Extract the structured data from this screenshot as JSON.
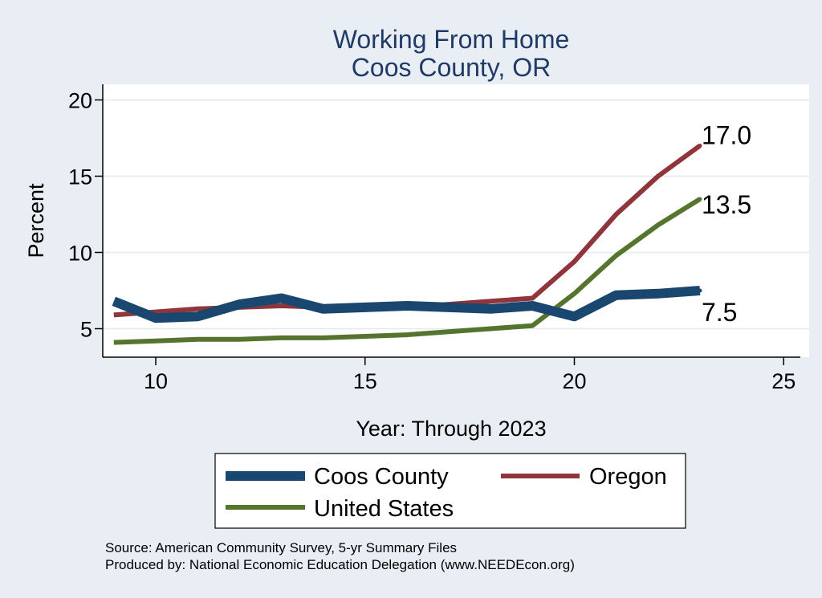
{
  "chart_data": {
    "type": "line",
    "title": "Working From Home",
    "subtitle": "Coos County, OR",
    "xlabel": "Year: Through 2023",
    "ylabel": "Percent",
    "xlim": [
      8.8,
      25.2
    ],
    "ylim": [
      3.2,
      20.5
    ],
    "x_ticks": [
      "10",
      "15",
      "20",
      "25"
    ],
    "y_ticks": [
      "5",
      "10",
      "15",
      "20"
    ],
    "grid": true,
    "legend_position": "bottom",
    "series": [
      {
        "name": "Coos County",
        "color": "#1a476f",
        "x": [
          9,
          10,
          11,
          12,
          13,
          14,
          15,
          16,
          17,
          18,
          19,
          20,
          21,
          22,
          23
        ],
        "values": [
          6.8,
          5.7,
          5.8,
          6.6,
          7.0,
          6.3,
          6.4,
          6.5,
          6.4,
          6.3,
          6.5,
          5.8,
          7.2,
          7.3,
          7.5
        ],
        "end_label": "7.5"
      },
      {
        "name": "Oregon",
        "color": "#90353b",
        "x": [
          9,
          10,
          11,
          12,
          13,
          14,
          15,
          16,
          17,
          18,
          19,
          20,
          21,
          22,
          23
        ],
        "values": [
          5.9,
          6.1,
          6.3,
          6.4,
          6.5,
          6.4,
          6.3,
          6.4,
          6.6,
          6.8,
          7.0,
          9.4,
          12.5,
          15.0,
          17.0
        ],
        "end_label": "17.0"
      },
      {
        "name": "United States",
        "color": "#55752f",
        "x": [
          9,
          10,
          11,
          12,
          13,
          14,
          15,
          16,
          17,
          18,
          19,
          20,
          21,
          22,
          23
        ],
        "values": [
          4.1,
          4.2,
          4.3,
          4.3,
          4.4,
          4.4,
          4.5,
          4.6,
          4.8,
          5.0,
          5.2,
          7.3,
          9.8,
          11.8,
          13.5
        ],
        "end_label": "13.5"
      }
    ],
    "notes": [
      "Source: American Community Survey, 5-yr Summary Files",
      "Produced by: National Economic Education Delegation (www.NEEDEcon.org)"
    ]
  }
}
